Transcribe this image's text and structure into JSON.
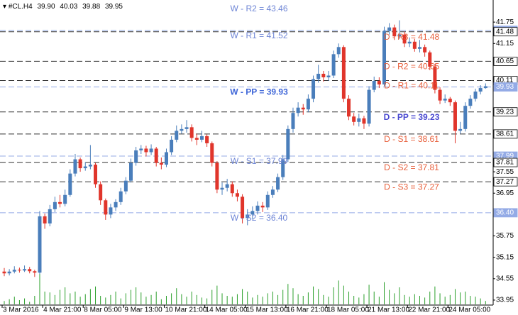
{
  "header": {
    "symbol": "#CL.H4",
    "ohlc": [
      {
        "value": 39.9,
        "label": "39.90"
      },
      {
        "value": 40.03,
        "label": "40.03"
      },
      {
        "value": 39.88,
        "label": "39.88"
      },
      {
        "value": 39.95,
        "label": "39.95"
      }
    ]
  },
  "chart_data": {
    "type": "candlestick",
    "up_color": "#4a7ebb",
    "down_color": "#e0352b",
    "volume_color": "#2ca02c",
    "categories": [
      "3 Mar 2016",
      null,
      null,
      null,
      null,
      null,
      null,
      null,
      "4 Mar 21:00",
      null,
      null,
      null,
      null,
      null,
      null,
      null,
      "8 Mar 05:00",
      null,
      null,
      null,
      null,
      null,
      null,
      null,
      "9 Mar 13:00",
      null,
      null,
      null,
      null,
      null,
      null,
      null,
      "10 Mar 21:00",
      null,
      null,
      null,
      null,
      null,
      null,
      null,
      "14 Mar 05:00",
      null,
      null,
      null,
      null,
      null,
      null,
      null,
      "15 Mar 13:00",
      null,
      null,
      null,
      null,
      null,
      null,
      null,
      "16 Mar 21:00",
      null,
      null,
      null,
      null,
      null,
      null,
      null,
      "18 Mar 05:00",
      null,
      null,
      null,
      null,
      null,
      null,
      null,
      "21 Mar 13:00",
      null,
      null,
      null,
      null,
      null,
      null,
      null,
      "22 Mar 21:00",
      null,
      null,
      null,
      null,
      null,
      null,
      null,
      "24 Mar 05:00",
      null,
      null,
      null,
      null,
      null,
      null,
      null
    ],
    "open": [
      34.75,
      34.7,
      34.75,
      34.8,
      34.78,
      34.82,
      34.76,
      34.72,
      36.3,
      36.1,
      36.5,
      36.7,
      36.65,
      36.9,
      37.5,
      37.9,
      37.65,
      37.7,
      37.75,
      37.2,
      36.75,
      36.35,
      36.55,
      36.7,
      37.0,
      37.3,
      37.8,
      38.15,
      38.2,
      38.1,
      38.2,
      37.8,
      37.75,
      38.1,
      38.45,
      38.7,
      38.75,
      38.8,
      38.5,
      38.45,
      38.55,
      38.35,
      37.8,
      37.05,
      37.1,
      37.2,
      36.95,
      36.85,
      36.25,
      36.35,
      36.45,
      36.6,
      36.55,
      36.9,
      37.05,
      37.4,
      37.9,
      38.75,
      39.2,
      39.35,
      39.3,
      39.6,
      40.15,
      40.3,
      40.2,
      40.25,
      40.85,
      41.05,
      39.6,
      39.1,
      38.95,
      39.05,
      38.9,
      39.85,
      40.1,
      40.0,
      41.5,
      41.6,
      41.35,
      41.4,
      41.15,
      41.2,
      41.0,
      41.05,
      40.9,
      40.5,
      39.85,
      39.55,
      39.6,
      39.5,
      38.7,
      38.75,
      39.4,
      39.6,
      39.8,
      39.9
    ],
    "high": [
      34.85,
      34.82,
      34.9,
      34.86,
      34.92,
      34.88,
      34.8,
      36.45,
      36.38,
      36.62,
      36.85,
      36.9,
      37.05,
      37.62,
      38.05,
      37.95,
      37.82,
      38.3,
      37.8,
      37.28,
      36.8,
      36.65,
      36.78,
      37.1,
      37.4,
      37.92,
      38.25,
      38.3,
      38.28,
      38.32,
      38.25,
      37.95,
      38.2,
      38.55,
      38.85,
      38.88,
      39.0,
      38.88,
      38.62,
      38.7,
      38.6,
      38.4,
      37.85,
      37.25,
      37.35,
      37.28,
      37.05,
      36.92,
      36.5,
      36.58,
      36.72,
      36.7,
      37.0,
      37.15,
      37.5,
      38.02,
      38.85,
      39.35,
      39.5,
      39.45,
      39.72,
      40.25,
      40.55,
      40.38,
      40.38,
      40.95,
      41.15,
      41.1,
      39.7,
      39.2,
      39.18,
      39.12,
      39.95,
      40.22,
      40.2,
      41.62,
      41.72,
      41.68,
      41.8,
      41.48,
      41.32,
      41.28,
      41.25,
      41.12,
      40.95,
      40.58,
      39.92,
      39.72,
      39.65,
      39.55,
      38.95,
      39.5,
      39.7,
      39.88,
      39.98,
      40.03
    ],
    "low": [
      34.62,
      34.64,
      34.7,
      34.72,
      34.74,
      34.7,
      34.6,
      34.68,
      35.95,
      36.02,
      36.42,
      36.55,
      36.58,
      36.85,
      37.42,
      37.55,
      37.58,
      37.62,
      37.1,
      36.62,
      36.2,
      36.25,
      36.45,
      36.62,
      36.92,
      37.25,
      37.72,
      38.05,
      37.98,
      38.02,
      37.7,
      37.62,
      37.68,
      38.02,
      38.38,
      38.62,
      38.65,
      38.4,
      38.3,
      38.38,
      38.25,
      37.7,
      36.95,
      36.9,
      37.0,
      36.85,
      36.72,
      36.1,
      36.05,
      36.22,
      36.35,
      36.42,
      36.48,
      36.82,
      36.98,
      37.32,
      37.82,
      38.65,
      39.1,
      39.15,
      39.22,
      39.5,
      40.05,
      40.08,
      40.1,
      40.18,
      40.75,
      39.5,
      39.0,
      38.85,
      38.82,
      38.75,
      38.82,
      39.78,
      39.9,
      39.95,
      41.4,
      41.25,
      41.28,
      41.05,
      41.05,
      40.92,
      40.9,
      40.78,
      40.4,
      39.75,
      39.45,
      39.48,
      39.4,
      38.35,
      38.62,
      38.68,
      39.32,
      39.52,
      39.72,
      39.88
    ],
    "close": [
      34.7,
      34.75,
      34.8,
      34.78,
      34.82,
      34.76,
      34.72,
      36.3,
      36.1,
      36.5,
      36.7,
      36.65,
      36.9,
      37.5,
      37.9,
      37.65,
      37.7,
      37.75,
      37.2,
      36.75,
      36.35,
      36.55,
      36.7,
      37.0,
      37.3,
      37.8,
      38.15,
      38.2,
      38.1,
      38.2,
      37.8,
      37.75,
      38.1,
      38.45,
      38.7,
      38.75,
      38.8,
      38.5,
      38.45,
      38.55,
      38.35,
      37.8,
      37.05,
      37.1,
      37.2,
      36.95,
      36.85,
      36.25,
      36.35,
      36.45,
      36.6,
      36.55,
      36.9,
      37.05,
      37.4,
      37.9,
      38.75,
      39.2,
      39.35,
      39.3,
      39.6,
      40.15,
      40.3,
      40.2,
      40.25,
      40.85,
      41.05,
      39.6,
      39.1,
      38.95,
      39.05,
      38.9,
      39.85,
      40.1,
      40.0,
      41.5,
      41.6,
      41.35,
      41.4,
      41.15,
      41.2,
      41.0,
      41.05,
      40.9,
      40.5,
      39.85,
      39.55,
      39.6,
      39.5,
      38.7,
      38.75,
      39.4,
      39.6,
      39.8,
      39.9,
      39.95
    ],
    "volume": [
      8,
      12,
      18,
      10,
      14,
      6,
      20,
      72,
      30,
      28,
      22,
      34,
      40,
      26,
      30,
      18,
      24,
      36,
      42,
      20,
      16,
      22,
      30,
      14,
      26,
      34,
      40,
      28,
      18,
      22,
      30,
      12,
      20,
      26,
      38,
      24,
      18,
      30,
      22,
      16,
      14,
      34,
      44,
      26,
      20,
      18,
      24,
      36,
      30,
      16,
      22,
      18,
      26,
      30,
      22,
      34,
      48,
      38,
      24,
      20,
      28,
      42,
      36,
      22,
      18,
      40,
      56,
      44,
      30,
      20,
      16,
      24,
      46,
      30,
      18,
      52,
      34,
      26,
      40,
      22,
      18,
      24,
      20,
      16,
      30,
      42,
      26,
      18,
      22,
      36,
      28,
      30,
      20,
      18,
      14,
      8
    ],
    "volume_lim": [
      0,
      100
    ],
    "ylim": [
      33.81,
      42.37
    ],
    "yticks": [
      33.95,
      34.55,
      35.15,
      35.75,
      36.95,
      37.55,
      41.15,
      41.75
    ],
    "levels": [
      {
        "label": "W - R2 = 43.46",
        "price": 43.46,
        "color": "#6f86d6",
        "line_color": "#94abe6",
        "bold": false
      },
      {
        "label": "W - R1 = 41.52",
        "price": 41.52,
        "color": "#6f86d6",
        "line_color": "#94abe6",
        "bold": false
      },
      {
        "label": "D - R3 = 41.48",
        "price": 41.48,
        "color": "#e8603c",
        "line_color": "#333333",
        "bold": false
      },
      {
        "label": "D - R2 = 40.65",
        "price": 40.65,
        "color": "#e8603c",
        "line_color": "#333333",
        "bold": false
      },
      {
        "label": "D - R1 = 40.11",
        "price": 40.11,
        "color": "#e8603c",
        "line_color": "#333333",
        "bold": false
      },
      {
        "label": "W - PP = 39.93",
        "price": 39.93,
        "color": "#3f66d8",
        "line_color": "#94abe6",
        "bold": true
      },
      {
        "label": "D - PP = 39.23",
        "price": 39.23,
        "color": "#4a4ad0",
        "line_color": "#333333",
        "bold": true
      },
      {
        "label": "D - S1 = 38.61",
        "price": 38.61,
        "color": "#e8603c",
        "line_color": "#333333",
        "bold": false
      },
      {
        "label": "W - S1 = 37.99",
        "price": 37.99,
        "color": "#6f86d6",
        "line_color": "#94abe6",
        "bold": false
      },
      {
        "label": "D - S2 = 37.81",
        "price": 37.81,
        "color": "#e8603c",
        "line_color": "#333333",
        "bold": false
      },
      {
        "label": "D - S3 = 37.27",
        "price": 37.27,
        "color": "#e8603c",
        "line_color": "#333333",
        "bold": false
      },
      {
        "label": "W - S2 = 36.40",
        "price": {
          "value": 36.4,
          "label": "36.40"
        },
        "color": "#6f86d6",
        "line_color": "#94abe6",
        "bold": false
      }
    ]
  }
}
